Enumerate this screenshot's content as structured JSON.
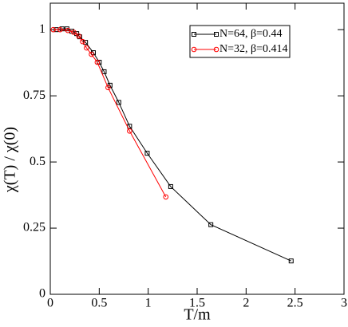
{
  "chart_data": {
    "type": "line",
    "xlabel": "T/m",
    "ylabel": "χ(T) / χ(0)",
    "xlim": [
      0,
      3
    ],
    "ylim": [
      0,
      1.1
    ],
    "xticks": [
      0,
      0.5,
      1,
      1.5,
      2,
      2.5,
      3
    ],
    "yticks": [
      0,
      0.25,
      0.5,
      0.75,
      1
    ],
    "legend": "upper right",
    "series": [
      {
        "name": "N=64, β=0.44",
        "color": "#000000",
        "marker": "square",
        "x": [
          0.06,
          0.12,
          0.17,
          0.22,
          0.27,
          0.3,
          0.36,
          0.44,
          0.5,
          0.55,
          0.61,
          0.7,
          0.81,
          0.99,
          1.23,
          1.64,
          2.46
        ],
        "values": [
          1.0,
          1.003,
          1.003,
          0.994,
          0.985,
          0.973,
          0.952,
          0.913,
          0.877,
          0.841,
          0.79,
          0.725,
          0.635,
          0.533,
          0.407,
          0.263,
          0.126
        ]
      },
      {
        "name": "N=32, β=0.414",
        "color": "#ff0000",
        "marker": "circle",
        "x": [
          0.03,
          0.1,
          0.18,
          0.24,
          0.29,
          0.33,
          0.37,
          0.42,
          0.48,
          0.59,
          0.81,
          1.18
        ],
        "values": [
          1.0,
          1.0,
          0.997,
          0.99,
          0.976,
          0.955,
          0.931,
          0.907,
          0.877,
          0.781,
          0.617,
          0.368
        ]
      }
    ]
  }
}
